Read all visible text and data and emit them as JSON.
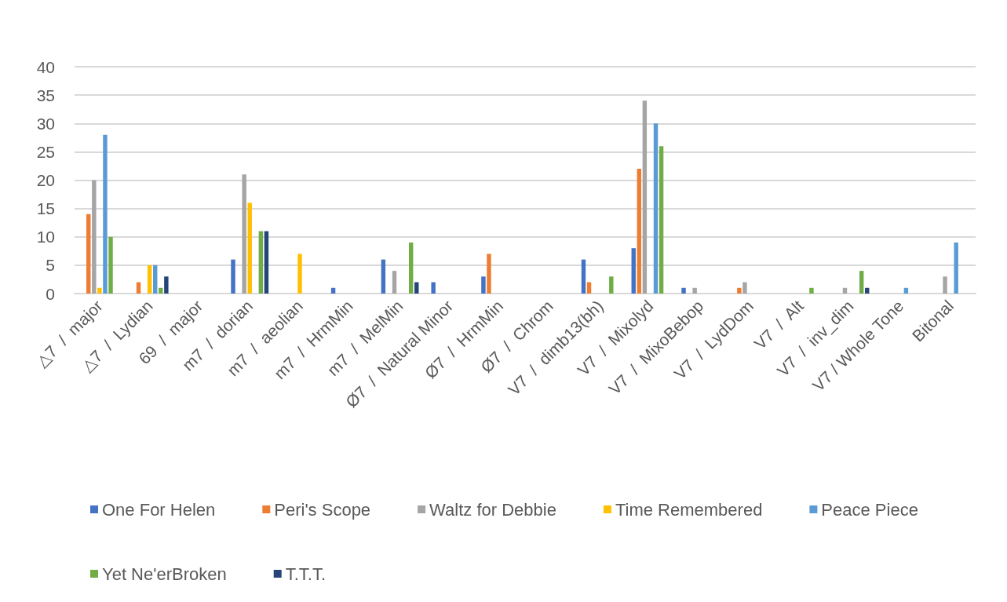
{
  "chart_data": {
    "type": "bar",
    "categories": [
      "△7  /  major",
      "△7  /  Lydian",
      "69  /  major",
      "m7  /  dorian",
      "m7  /  aeolian",
      "m7  /  HrmMin",
      "m7  /  MelMin",
      "Ø7  /  Natural Minor",
      "Ø7  /  HrmMin",
      "Ø7  /  Chrom",
      "V7  /  dimb13(bh)",
      "V7  /  Mixolyd",
      "V7  /  MixoBebop",
      "V7  /  LydDom",
      "V7  /  Alt",
      "V7  /  inv_dim",
      "V7 / Whole Tone",
      "Bitonal"
    ],
    "series": [
      {
        "name": "One For Helen",
        "color": "#4472c4",
        "values": [
          0,
          0,
          0,
          6,
          0,
          1,
          6,
          2,
          3,
          0,
          6,
          8,
          1,
          0,
          0,
          0,
          0,
          0
        ]
      },
      {
        "name": "Peri's Scope",
        "color": "#ed7d31",
        "values": [
          14,
          2,
          0,
          0,
          0,
          0,
          0,
          0,
          7,
          0,
          2,
          22,
          0,
          1,
          0,
          0,
          0,
          0
        ]
      },
      {
        "name": "Waltz for Debbie",
        "color": "#a5a5a5",
        "values": [
          20,
          0,
          0,
          21,
          0,
          0,
          4,
          0,
          0,
          0,
          0,
          34,
          1,
          2,
          0,
          1,
          0,
          3
        ]
      },
      {
        "name": "Time Remembered",
        "color": "#ffc000",
        "values": [
          1,
          5,
          0,
          16,
          7,
          0,
          0,
          0,
          0,
          0,
          0,
          0,
          0,
          0,
          0,
          0,
          0,
          0
        ]
      },
      {
        "name": "Peace Piece",
        "color": "#5b9bd5",
        "values": [
          28,
          5,
          0,
          0,
          0,
          0,
          0,
          0,
          0,
          0,
          0,
          30,
          0,
          0,
          0,
          0,
          1,
          9
        ]
      },
      {
        "name": "Yet Ne'erBroken",
        "color": "#70ad47",
        "values": [
          10,
          1,
          0,
          11,
          0,
          0,
          9,
          0,
          0,
          0,
          3,
          26,
          0,
          0,
          1,
          4,
          0,
          0
        ]
      },
      {
        "name": "T.T.T.",
        "color": "#264478",
        "values": [
          0,
          3,
          0,
          11,
          0,
          0,
          2,
          0,
          0,
          0,
          0,
          0,
          0,
          0,
          0,
          1,
          0,
          0
        ]
      }
    ],
    "ylim": [
      0,
      40
    ],
    "yticks": [
      0,
      5,
      10,
      15,
      20,
      25,
      30,
      35,
      40
    ],
    "grid": "y",
    "legend": "bottom"
  }
}
